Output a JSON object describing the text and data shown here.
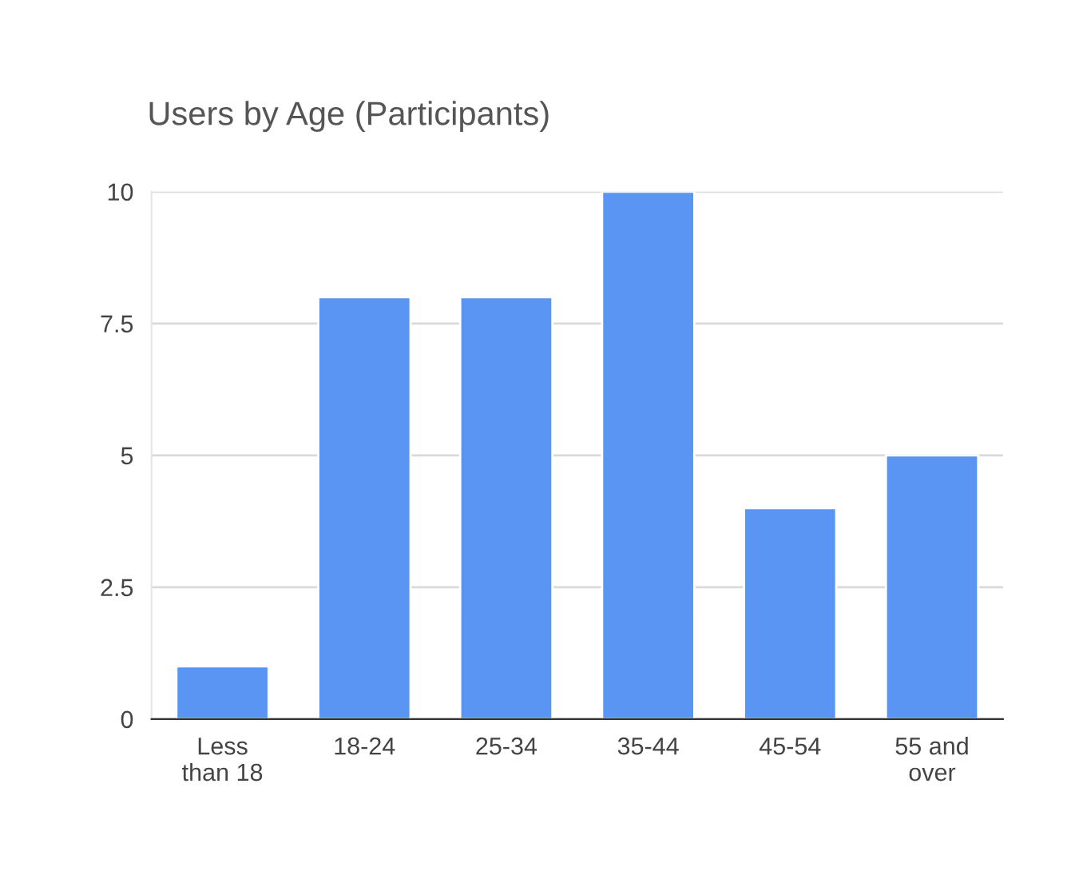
{
  "chart_data": {
    "type": "bar",
    "title": "Users by Age (Participants)",
    "categories": [
      "Less\nthan 18",
      "18-24",
      "25-34",
      "35-44",
      "45-54",
      "55 and\nover"
    ],
    "values": [
      1,
      8,
      8,
      10,
      4,
      5
    ],
    "color": "#5b95f4",
    "ylim": [
      0,
      10
    ],
    "yticks": [
      0,
      2.5,
      5,
      7.5,
      10
    ],
    "grid": "y",
    "legend": false
  }
}
